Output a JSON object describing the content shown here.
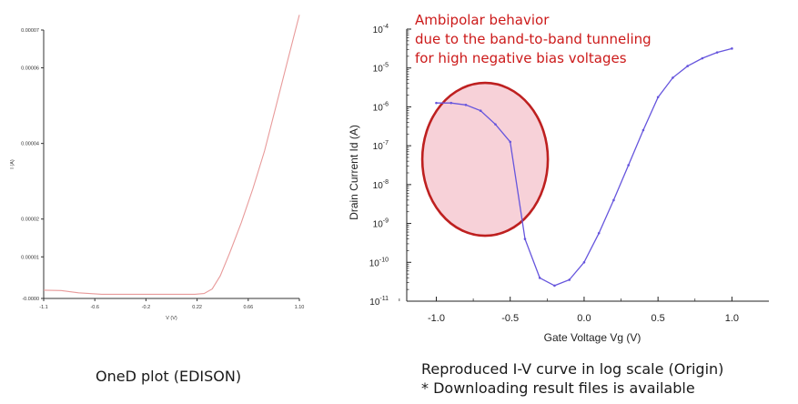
{
  "chart_data": [
    {
      "type": "line",
      "title": "",
      "xlabel": "V (V)",
      "ylabel": "I (A)",
      "x_ticks": [
        "-1.1",
        "-0.6",
        "-0.2",
        "0.22",
        "0.66",
        "1.10"
      ],
      "x_tick_values": [
        -1.1,
        -0.66,
        -0.22,
        0.22,
        0.66,
        1.1
      ],
      "y_ticks": [
        "-0.0000",
        "0.00001",
        "0.00002",
        "0.00004",
        "0.00006",
        "0.00007"
      ],
      "y_tick_values": [
        -1e-06,
        1e-05,
        2e-05,
        4e-05,
        6e-05,
        7e-05
      ],
      "xlim": [
        -1.1,
        1.1
      ],
      "ylim": [
        -1e-06,
        7e-05
      ],
      "series": [
        {
          "color": "#e89a9a",
          "x": [
            -1.1,
            -0.95,
            -0.8,
            -0.6,
            -0.4,
            -0.2,
            0.0,
            0.2,
            0.28,
            0.35,
            0.42,
            0.5,
            0.6,
            0.7,
            0.8,
            0.9,
            1.0,
            1.05,
            1.1
          ],
          "y": [
            1.2e-06,
            1.1e-06,
            5e-07,
            1e-07,
            1e-07,
            1e-07,
            1e-07,
            1e-07,
            3e-07,
            1.5e-06,
            5e-06,
            1.1e-05,
            1.9e-05,
            2.8e-05,
            3.8e-05,
            5e-05,
            6.2e-05,
            6.8e-05,
            7.4e-05
          ]
        }
      ],
      "caption": "OneD plot (EDISON)"
    },
    {
      "type": "line",
      "title": "",
      "xlabel": "Gate Voltage Vg (V)",
      "ylabel": "Drain Current Id (A)",
      "y_scale": "log",
      "x_ticks": [
        "-1.0",
        "-0.5",
        "0.0",
        "0.5",
        "1.0"
      ],
      "x_tick_values": [
        -1.0,
        -0.5,
        0.0,
        0.5,
        1.0
      ],
      "y_tick_labels": [
        {
          "base": "10",
          "exp": "-11",
          "value": -11
        },
        {
          "base": "10",
          "exp": "-10",
          "value": -10
        },
        {
          "base": "10",
          "exp": "-9",
          "value": -9
        },
        {
          "base": "10",
          "exp": "-8",
          "value": -8
        },
        {
          "base": "10",
          "exp": "-7",
          "value": -7
        },
        {
          "base": "10",
          "exp": "-6",
          "value": -6
        },
        {
          "base": "10",
          "exp": "-5",
          "value": -5
        },
        {
          "base": "10",
          "exp": "-4",
          "value": -4
        }
      ],
      "xlim": [
        -1.2,
        1.25
      ],
      "ylim_log10": [
        -11,
        -4
      ],
      "series": [
        {
          "color": "#6655dd",
          "x": [
            -1.0,
            -0.9,
            -0.8,
            -0.7,
            -0.6,
            -0.5,
            -0.4,
            -0.3,
            -0.2,
            -0.1,
            0.0,
            0.1,
            0.2,
            0.3,
            0.4,
            0.5,
            0.6,
            0.7,
            0.8,
            0.9,
            1.0
          ],
          "log10_y": [
            -5.9,
            -5.9,
            -5.95,
            -6.1,
            -6.45,
            -6.9,
            -9.4,
            -10.4,
            -10.6,
            -10.45,
            -10.0,
            -9.25,
            -8.4,
            -7.5,
            -6.6,
            -5.75,
            -5.25,
            -4.95,
            -4.75,
            -4.6,
            -4.5
          ]
        }
      ],
      "annotation": {
        "lines": [
          "Ambipolar behavior",
          "due to the band-to-band tunneling",
          "for high negative bias voltages"
        ],
        "color": "#cc1a1a",
        "circle_fill": "#f7cfd6",
        "circle_stroke": "#bb1515",
        "circle_center": {
          "x": -0.67,
          "log10_y": -7.35
        }
      },
      "caption": [
        "Reproduced I-V curve in log scale (Origin)",
        "* Downloading result files is available"
      ]
    }
  ]
}
